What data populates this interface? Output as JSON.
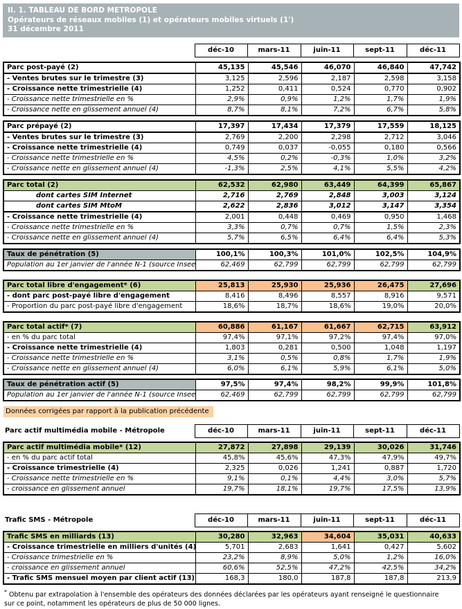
{
  "title": {
    "line1": "II. 1.  TABLEAU DE BORD METROPOLE",
    "line2": "Opérateurs de réseaux mobiles (1) et opérateurs mobiles virtuels (1')",
    "line3": "31 décembre 2011"
  },
  "columns": [
    "déc-10",
    "mars-11",
    "juin-11",
    "sept-11",
    "déc-11"
  ],
  "colors": {
    "titlebar": "#A7B2B6",
    "green": "#C3D69B",
    "gray": "#AFBABA",
    "orange": "#FAC08F",
    "note_bg": "#FBD2A4"
  },
  "note": "Données corrigées par rapport à la publication précédente",
  "footnote_marker": "*",
  "footnote_text": "Obtenu par extrapolation à l'ensemble des opérateurs des données déclarées par les opérateurs ayant renseigné le questionnaire sur ce point, notamment les opérateurs de plus de 50 000 lignes.",
  "blocks1": [
    {
      "type": "columns",
      "id": "period-header",
      "title": "",
      "mt": 9
    },
    {
      "type": "table",
      "id": "table-parc-post-paye",
      "mt": 6,
      "rows": [
        {
          "label": "Parc post-payé (2)",
          "ls": "b",
          "vs": "b",
          "hb": true,
          "values": [
            "45,135",
            "45,546",
            "46,070",
            "46,840",
            "47,742"
          ]
        },
        {
          "label": "- Ventes brutes sur le trimestre (3)",
          "ls": "b",
          "vs": "r",
          "values": [
            "3,125",
            "2,596",
            "2,187",
            "2,598",
            "3,158"
          ]
        },
        {
          "label": "- Croissance nette trimestrielle (4)",
          "ls": "b",
          "vs": "r",
          "values": [
            "1,252",
            "0,411",
            "0,524",
            "0,770",
            "0,902"
          ]
        },
        {
          "label": "- Croissance nette trimestrielle en %",
          "ls": "i",
          "vs": "i",
          "values": [
            "2,9%",
            "0,9%",
            "1,2%",
            "1,7%",
            "1,9%"
          ]
        },
        {
          "label": "- Croissance nette en glissement annuel (4)",
          "ls": "i",
          "vs": "i",
          "values": [
            "8,7%",
            "8,1%",
            "7,2%",
            "6,7%",
            "5,8%"
          ]
        }
      ]
    },
    {
      "type": "table",
      "id": "table-parc-prepaye",
      "mt": 6,
      "rows": [
        {
          "label": "Parc prépayé (2)",
          "ls": "b",
          "vs": "b",
          "hb": true,
          "values": [
            "17,397",
            "17,434",
            "17,379",
            "17,559",
            "18,125"
          ]
        },
        {
          "label": "- Ventes brutes sur le trimestre (3)",
          "ls": "b",
          "vs": "r",
          "values": [
            "2,769",
            "2,200",
            "2,298",
            "2,712",
            "3,046"
          ]
        },
        {
          "label": "- Croissance nette trimestrielle (4)",
          "ls": "b",
          "vs": "r",
          "values": [
            "0,749",
            "0,037",
            "-0,055",
            "0,180",
            "0,566"
          ]
        },
        {
          "label": "- Croissance nette trimestrielle en %",
          "ls": "i",
          "vs": "i",
          "values": [
            "4,5%",
            "0,2%",
            "-0,3%",
            "1,0%",
            "3,2%"
          ]
        },
        {
          "label": "- Croissance nette en glissement annuel (4)",
          "ls": "i",
          "vs": "i",
          "values": [
            "-1,3%",
            "2,5%",
            "4,1%",
            "5,5%",
            "4,2%"
          ]
        }
      ]
    },
    {
      "type": "table",
      "id": "table-parc-total",
      "mt": 6,
      "rows": [
        {
          "label": "Parc total (2)",
          "ls": "b",
          "vs": "b",
          "lbg": "green",
          "bgs": [
            "green",
            "green",
            "green",
            "green",
            "green"
          ],
          "values": [
            "62,532",
            "62,980",
            "63,449",
            "64,399",
            "65,867"
          ]
        },
        {
          "label": "dont cartes SIM Internet",
          "ls": "bi",
          "vs": "bi",
          "values": [
            "2,716",
            "2,769",
            "2,848",
            "3,003",
            "3,124"
          ]
        },
        {
          "label": "dont cartes SIM MtoM",
          "ls": "bi",
          "vs": "bi",
          "hb": true,
          "values": [
            "2,622",
            "2,836",
            "3,012",
            "3,147",
            "3,354"
          ]
        },
        {
          "label": "- Croissance nette trimestrielle (4)",
          "ls": "b",
          "vs": "r",
          "values": [
            "2,001",
            "0,448",
            "0,469",
            "0,950",
            "1,468"
          ]
        },
        {
          "label": "- Croissance nette trimestrielle en %",
          "ls": "i",
          "vs": "i",
          "values": [
            "3,3%",
            "0,7%",
            "0,7%",
            "1,5%",
            "2,3%"
          ]
        },
        {
          "label": "- Croissance nette en glissement annuel (4)",
          "ls": "i",
          "vs": "i",
          "values": [
            "5,7%",
            "6,5%",
            "6,4%",
            "6,4%",
            "5,3%"
          ]
        }
      ]
    },
    {
      "type": "table",
      "id": "table-taux-penetration",
      "mt": 6,
      "rows": [
        {
          "label": "Taux de pénétration (5)",
          "ls": "b",
          "vs": "b",
          "lbg": "gray",
          "values": [
            "100,1%",
            "100,3%",
            "101,0%",
            "102,5%",
            "104,9%"
          ]
        },
        {
          "label": "Population au 1er janvier de l'année N-1 (source Insee)",
          "ls": "i",
          "vs": "i",
          "values": [
            "62,469",
            "62,799",
            "62,799",
            "62,799",
            "62,799"
          ]
        }
      ]
    },
    {
      "type": "table",
      "id": "table-parc-libre-engagement",
      "mt": 12,
      "rows": [
        {
          "label": "Parc total libre d'engagement* (6)",
          "ls": "b",
          "vs": "b",
          "lbg": "green",
          "bgs": [
            "orange",
            "orange",
            "orange",
            "orange",
            "green"
          ],
          "values": [
            "25,813",
            "25,930",
            "25,936",
            "26,475",
            "27,696"
          ]
        },
        {
          "label": "- dont parc post-payé libre d'engagement",
          "ls": "b",
          "vs": "r",
          "values": [
            "8,416",
            "8,496",
            "8,557",
            "8,916",
            "9,571"
          ]
        },
        {
          "label": "- Proportion du parc post-payé libre d'engagement",
          "ls": "r",
          "vs": "r",
          "values": [
            "18,6%",
            "18,7%",
            "18,6%",
            "19,0%",
            "20,0%"
          ]
        }
      ]
    },
    {
      "type": "table",
      "id": "table-parc-total-actif",
      "mt": 12,
      "rows": [
        {
          "label": "Parc total actif* (7)",
          "ls": "b",
          "vs": "b",
          "lbg": "green",
          "bgs": [
            "orange",
            "orange",
            "orange",
            "orange",
            "green"
          ],
          "values": [
            "60,886",
            "61,167",
            "61,667",
            "62,715",
            "63,912"
          ]
        },
        {
          "label": "- en % du parc total",
          "ls": "r",
          "vs": "r",
          "values": [
            "97,4%",
            "97,1%",
            "97,2%",
            "97,4%",
            "97,0%"
          ]
        },
        {
          "label": "- Croissance nette trimestrielle (4)",
          "ls": "b",
          "vs": "r",
          "values": [
            "1,803",
            "0,281",
            "0,500",
            "1,048",
            "1,197"
          ]
        },
        {
          "label": "- Croissance nette trimestrielle en %",
          "ls": "i",
          "vs": "i",
          "values": [
            "3,1%",
            "0,5%",
            "0,8%",
            "1,7%",
            "1,9%"
          ]
        },
        {
          "label": "- Croissance nette en glissement annuel (4)",
          "ls": "i",
          "vs": "i",
          "values": [
            "6,0%",
            "6,1%",
            "5,9%",
            "6,1%",
            "5,0%"
          ]
        }
      ]
    },
    {
      "type": "table",
      "id": "table-taux-penetration-actif",
      "mt": 5,
      "rows": [
        {
          "label": "Taux de pénétration actif (5)",
          "ls": "b",
          "vs": "b",
          "lbg": "gray",
          "values": [
            "97,5%",
            "97,4%",
            "98,2%",
            "99,9%",
            "101,8%"
          ]
        },
        {
          "label": "Population au 1er janvier de l'année N-1 (source Insee)",
          "ls": "i",
          "vs": "i",
          "values": [
            "62,469",
            "62,799",
            "62,799",
            "62,799",
            "62,799"
          ]
        }
      ]
    }
  ],
  "blocks2": [
    {
      "type": "columns",
      "id": "multimedia-period-header",
      "title": "Parc actif multimédia mobile - Métropole",
      "mt": 10
    },
    {
      "type": "table",
      "id": "table-parc-actif-multimedia",
      "mt": 5,
      "rows": [
        {
          "label": "Parc actif multimédia mobile* (12)",
          "ls": "b",
          "vs": "b",
          "lbg": "green",
          "bgs": [
            "green",
            "green",
            "green",
            "green",
            "green"
          ],
          "values": [
            "27,872",
            "27,898",
            "29,139",
            "30,026",
            "31,746"
          ]
        },
        {
          "label": "- en % du parc actif total",
          "ls": "r",
          "vs": "r",
          "values": [
            "45,8%",
            "45,6%",
            "47,3%",
            "47,9%",
            "49,7%"
          ]
        },
        {
          "label": "- Croissance trimestrielle (4)",
          "ls": "b",
          "vs": "r",
          "values": [
            "2,325",
            "0,026",
            "1,241",
            "0,887",
            "1,720"
          ]
        },
        {
          "label": "- Croissance nette trimestrielle en %",
          "ls": "i",
          "vs": "i",
          "values": [
            "9,1%",
            "0,1%",
            "4,4%",
            "3,0%",
            "5,7%"
          ]
        },
        {
          "label": "- croissance en glissement annuel",
          "ls": "i",
          "vs": "i",
          "values": [
            "19,7%",
            "18,1%",
            "19,7%",
            "17,5%",
            "13,9%"
          ]
        }
      ]
    }
  ],
  "blocks3": [
    {
      "type": "columns",
      "id": "sms-period-header",
      "title": "Trafic SMS - Métropole",
      "mt": 26
    },
    {
      "type": "table",
      "id": "table-trafic-sms",
      "mt": 5,
      "rows": [
        {
          "label": "Trafic SMS en milliards (13)",
          "ls": "b",
          "vs": "b",
          "lbg": "green",
          "bgs": [
            "green",
            "green",
            "orange",
            "green",
            "green"
          ],
          "values": [
            "30,280",
            "32,963",
            "34,604",
            "35,031",
            "40,633"
          ]
        },
        {
          "label": "- Croissance trimestrielle en milliers d'unités (4)",
          "ls": "b",
          "vs": "r",
          "values": [
            "5,701",
            "2,683",
            "1,641",
            "0,427",
            "5,602"
          ]
        },
        {
          "label": "- Croissance trimestrielle en %",
          "ls": "i",
          "vs": "i",
          "values": [
            "23,2%",
            "8,9%",
            "5,0%",
            "1,2%",
            "16,0%"
          ]
        },
        {
          "label": "- croissance en glissement annuel",
          "ls": "i",
          "vs": "i",
          "values": [
            "60,6%",
            "52,5%",
            "47,2%",
            "42,5%",
            "34,2%"
          ]
        },
        {
          "label": "- Trafic SMS mensuel moyen par client actif (13)",
          "ls": "b",
          "vs": "r",
          "values": [
            "168,3",
            "180,0",
            "187,8",
            "187,8",
            "213,9"
          ]
        }
      ]
    }
  ]
}
